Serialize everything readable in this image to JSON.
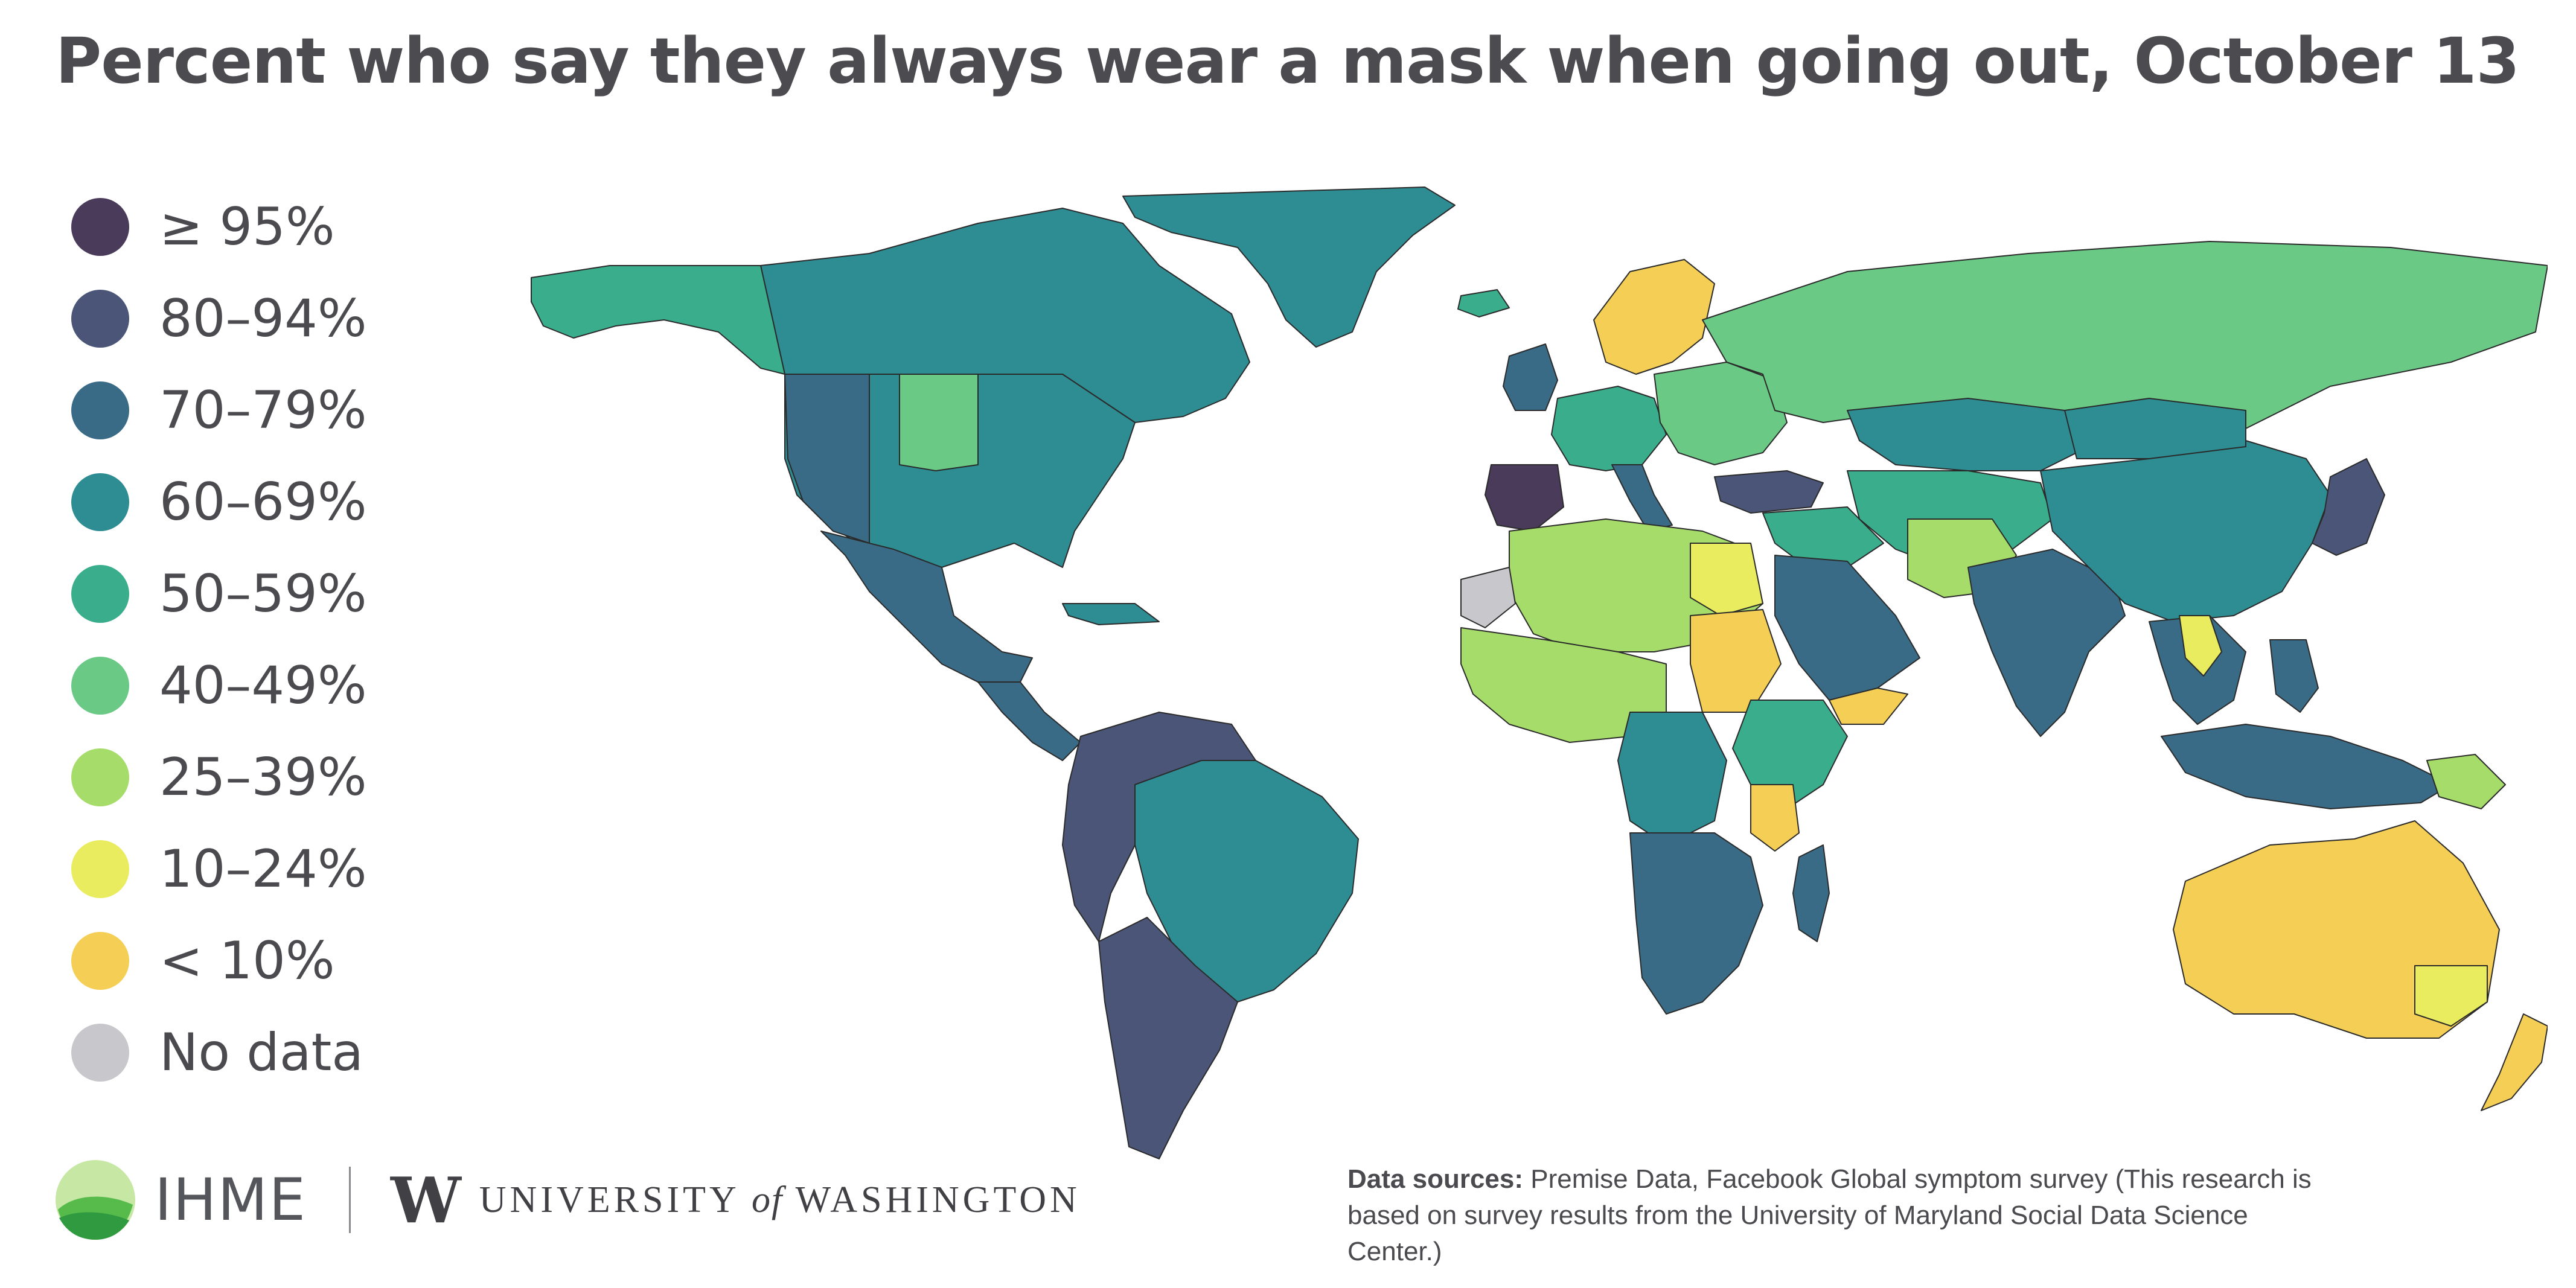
{
  "title": "Percent who say they always wear a mask when going out, October 13",
  "legend": [
    {
      "label": "≥ 95%",
      "color": "#4a3b5a"
    },
    {
      "label": "80–94%",
      "color": "#4a5578"
    },
    {
      "label": "70–79%",
      "color": "#3a6b86"
    },
    {
      "label": "60–69%",
      "color": "#2e8c93"
    },
    {
      "label": "50–59%",
      "color": "#3aae8c"
    },
    {
      "label": "40–49%",
      "color": "#6bc986"
    },
    {
      "label": "25–39%",
      "color": "#a6dc69"
    },
    {
      "label": "10–24%",
      "color": "#e8ec5e"
    },
    {
      "label": "< 10%",
      "color": "#f5cf55"
    },
    {
      "label": "No data",
      "color": "#c8c8cc"
    }
  ],
  "regions": [
    {
      "name": "greenland",
      "color": "#2e8c93"
    },
    {
      "name": "canada",
      "color": "#2e8c93"
    },
    {
      "name": "alaska",
      "color": "#3aae8c"
    },
    {
      "name": "united-states",
      "color": "#2e8c93"
    },
    {
      "name": "us-west",
      "color": "#3a6b86"
    },
    {
      "name": "us-plains",
      "color": "#6bc986"
    },
    {
      "name": "mexico",
      "color": "#3a6b86"
    },
    {
      "name": "central-america",
      "color": "#3a6b86"
    },
    {
      "name": "caribbean",
      "color": "#2e8c93"
    },
    {
      "name": "south-america-north",
      "color": "#4a5578"
    },
    {
      "name": "brazil",
      "color": "#2e8c93"
    },
    {
      "name": "south-america-south",
      "color": "#4a5578"
    },
    {
      "name": "scandinavia",
      "color": "#f5cf55"
    },
    {
      "name": "iceland",
      "color": "#3aae8c"
    },
    {
      "name": "uk-ireland",
      "color": "#3a6b86"
    },
    {
      "name": "western-europe",
      "color": "#3aae8c"
    },
    {
      "name": "iberia",
      "color": "#4a3b5a"
    },
    {
      "name": "italy",
      "color": "#3a6b86"
    },
    {
      "name": "eastern-europe",
      "color": "#6bc986"
    },
    {
      "name": "russia",
      "color": "#6bc986"
    },
    {
      "name": "turkey",
      "color": "#4a5578"
    },
    {
      "name": "middle-east",
      "color": "#3aae8c"
    },
    {
      "name": "arabian-peninsula",
      "color": "#3a6b86"
    },
    {
      "name": "yemen",
      "color": "#f5cf55"
    },
    {
      "name": "kazakhstan",
      "color": "#2e8c93"
    },
    {
      "name": "central-asia",
      "color": "#3aae8c"
    },
    {
      "name": "south-asia",
      "color": "#a6dc69"
    },
    {
      "name": "india",
      "color": "#3a6b86"
    },
    {
      "name": "china",
      "color": "#2e8c93"
    },
    {
      "name": "mongolia",
      "color": "#2e8c93"
    },
    {
      "name": "japan",
      "color": "#4a5578"
    },
    {
      "name": "southeast-asia",
      "color": "#3a6b86"
    },
    {
      "name": "indochina",
      "color": "#e8ec5e"
    },
    {
      "name": "indonesia",
      "color": "#3a6b86"
    },
    {
      "name": "philippines",
      "color": "#3a6b86"
    },
    {
      "name": "papua-new-guinea",
      "color": "#a6dc69"
    },
    {
      "name": "australia",
      "color": "#f5cf55"
    },
    {
      "name": "australia-southeast",
      "color": "#e8ec5e"
    },
    {
      "name": "new-zealand",
      "color": "#f5cf55"
    },
    {
      "name": "north-africa",
      "color": "#a6dc69"
    },
    {
      "name": "western-sahara",
      "color": "#c8c8cc"
    },
    {
      "name": "egypt",
      "color": "#e8ec5e"
    },
    {
      "name": "sudan",
      "color": "#f5cf55"
    },
    {
      "name": "west-africa",
      "color": "#a6dc69"
    },
    {
      "name": "central-africa",
      "color": "#2e8c93"
    },
    {
      "name": "east-africa",
      "color": "#3aae8c"
    },
    {
      "name": "tanzania",
      "color": "#f5cf55"
    },
    {
      "name": "southern-africa",
      "color": "#3a6b86"
    },
    {
      "name": "madagascar",
      "color": "#3a6b86"
    }
  ],
  "footer": {
    "ihme_label": "IHME",
    "uw_mark": "W",
    "uw_university": "UNIVERSITY",
    "uw_of": "of",
    "uw_washington": "WASHINGTON"
  },
  "sources": {
    "label": "Data sources:",
    "text": "Premise Data, Facebook Global symptom survey (This research is based on survey results from the University of Maryland Social Data Science Center.)"
  }
}
